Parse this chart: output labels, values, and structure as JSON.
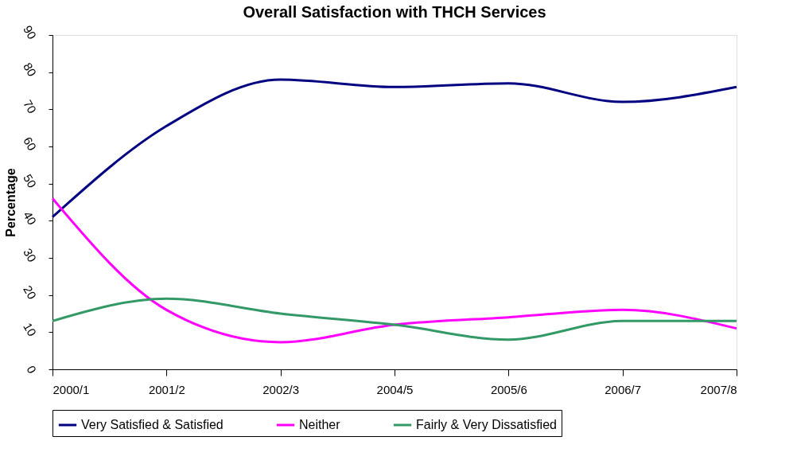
{
  "chart_data": {
    "type": "line",
    "title": "Overall Satisfaction with THCH Services",
    "ylabel": "Percentage",
    "categories": [
      "2000/1",
      "2001/2",
      "2002/3",
      "2004/5",
      "2005/6",
      "2006/7",
      "2007/8"
    ],
    "series": [
      {
        "name": "Very Satisfied & Satisfied",
        "color": "#000080",
        "values": [
          41,
          65.5,
          78,
          76,
          77,
          72,
          76
        ]
      },
      {
        "name": "Neither",
        "color": "#ff00ff",
        "values": [
          46,
          16,
          7.3,
          12,
          14,
          16,
          11
        ]
      },
      {
        "name": "Fairly & Very Dissatisfied",
        "color": "#339966",
        "values": [
          13,
          19,
          15,
          12,
          8,
          13,
          13
        ]
      }
    ],
    "ylim": [
      0,
      90
    ],
    "yticks": [
      0,
      10,
      20,
      30,
      40,
      50,
      60,
      70,
      80,
      90
    ],
    "grid": false,
    "legend": "bottom",
    "marker": "none",
    "line_style": "solid"
  }
}
